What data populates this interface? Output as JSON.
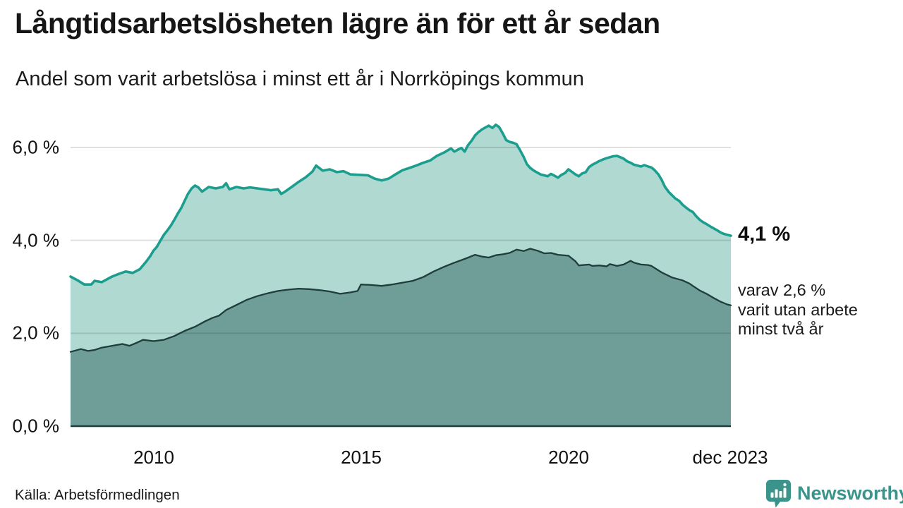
{
  "header": {
    "title": "Långtidsarbetslösheten lägre än för ett år sedan",
    "subtitle": "Andel som varit arbetslösa i minst ett år i Norrköpings kommun"
  },
  "footer": {
    "source": "Källa: Arbetsförmedlingen",
    "brand": "Newsworthy"
  },
  "chart_data": {
    "type": "area",
    "title": "Långtidsarbetslösheten lägre än för ett år sedan",
    "subtitle": "Andel som varit arbetslösa i minst ett år i Norrköpings kommun",
    "x_domain": [
      2008,
      2023.9167
    ],
    "ylim": [
      0,
      6.6
    ],
    "grid": true,
    "legend": "none",
    "yticks": [
      {
        "value": 0,
        "label": "0,0 %"
      },
      {
        "value": 2,
        "label": "2,0 %"
      },
      {
        "value": 4,
        "label": "4,0 %"
      },
      {
        "value": 6,
        "label": "6,0 %"
      }
    ],
    "xticks": [
      {
        "x": 2010,
        "label": "2010"
      },
      {
        "x": 2015,
        "label": "2015"
      },
      {
        "x": 2020,
        "label": "2020"
      },
      {
        "x": 2023.9167,
        "label": "dec 2023"
      }
    ],
    "colors": {
      "accent_teal": "#1b9e8e",
      "light_fill": "#b0d9d2",
      "dark_fill": "#6f9e99",
      "dark_line": "#1f3d3a",
      "grid": "rgba(17,17,17,0.13)",
      "baseline": "#1f3d3a",
      "brand_teal": "#3a948b"
    },
    "series": [
      {
        "name": "arbetslosa-minst-ett-ar",
        "end_value_label": "4,1 %",
        "line_color": "#1b9e8e",
        "fill_color": "#b0d9d2",
        "stroke_width": 3.6,
        "points": [
          [
            2008.0,
            3.22
          ],
          [
            2008.17,
            3.14
          ],
          [
            2008.33,
            3.05
          ],
          [
            2008.5,
            3.05
          ],
          [
            2008.58,
            3.13
          ],
          [
            2008.75,
            3.1
          ],
          [
            2009.0,
            3.22
          ],
          [
            2009.17,
            3.28
          ],
          [
            2009.33,
            3.33
          ],
          [
            2009.5,
            3.3
          ],
          [
            2009.67,
            3.38
          ],
          [
            2009.83,
            3.55
          ],
          [
            2009.92,
            3.66
          ],
          [
            2010.0,
            3.78
          ],
          [
            2010.08,
            3.86
          ],
          [
            2010.17,
            4.0
          ],
          [
            2010.25,
            4.12
          ],
          [
            2010.33,
            4.21
          ],
          [
            2010.42,
            4.32
          ],
          [
            2010.5,
            4.44
          ],
          [
            2010.58,
            4.57
          ],
          [
            2010.67,
            4.7
          ],
          [
            2010.75,
            4.85
          ],
          [
            2010.83,
            5.0
          ],
          [
            2010.92,
            5.12
          ],
          [
            2011.0,
            5.18
          ],
          [
            2011.08,
            5.14
          ],
          [
            2011.17,
            5.05
          ],
          [
            2011.25,
            5.1
          ],
          [
            2011.33,
            5.15
          ],
          [
            2011.5,
            5.12
          ],
          [
            2011.67,
            5.15
          ],
          [
            2011.75,
            5.23
          ],
          [
            2011.83,
            5.1
          ],
          [
            2012.0,
            5.15
          ],
          [
            2012.17,
            5.12
          ],
          [
            2012.33,
            5.14
          ],
          [
            2012.5,
            5.12
          ],
          [
            2012.67,
            5.1
          ],
          [
            2012.83,
            5.08
          ],
          [
            2013.0,
            5.1
          ],
          [
            2013.08,
            5.0
          ],
          [
            2013.17,
            5.05
          ],
          [
            2013.33,
            5.15
          ],
          [
            2013.5,
            5.26
          ],
          [
            2013.67,
            5.36
          ],
          [
            2013.83,
            5.48
          ],
          [
            2013.92,
            5.61
          ],
          [
            2014.08,
            5.5
          ],
          [
            2014.25,
            5.53
          ],
          [
            2014.42,
            5.47
          ],
          [
            2014.58,
            5.49
          ],
          [
            2014.75,
            5.42
          ],
          [
            2015.0,
            5.41
          ],
          [
            2015.17,
            5.4
          ],
          [
            2015.33,
            5.33
          ],
          [
            2015.5,
            5.29
          ],
          [
            2015.67,
            5.33
          ],
          [
            2015.83,
            5.42
          ],
          [
            2016.0,
            5.51
          ],
          [
            2016.17,
            5.56
          ],
          [
            2016.33,
            5.61
          ],
          [
            2016.5,
            5.67
          ],
          [
            2016.67,
            5.72
          ],
          [
            2016.83,
            5.82
          ],
          [
            2017.0,
            5.89
          ],
          [
            2017.17,
            5.98
          ],
          [
            2017.25,
            5.91
          ],
          [
            2017.33,
            5.95
          ],
          [
            2017.42,
            5.99
          ],
          [
            2017.5,
            5.91
          ],
          [
            2017.58,
            6.05
          ],
          [
            2017.67,
            6.15
          ],
          [
            2017.75,
            6.26
          ],
          [
            2017.83,
            6.33
          ],
          [
            2017.92,
            6.39
          ],
          [
            2018.0,
            6.43
          ],
          [
            2018.08,
            6.47
          ],
          [
            2018.17,
            6.42
          ],
          [
            2018.25,
            6.49
          ],
          [
            2018.33,
            6.44
          ],
          [
            2018.42,
            6.3
          ],
          [
            2018.5,
            6.16
          ],
          [
            2018.58,
            6.12
          ],
          [
            2018.67,
            6.1
          ],
          [
            2018.75,
            6.07
          ],
          [
            2018.83,
            5.95
          ],
          [
            2018.92,
            5.8
          ],
          [
            2019.0,
            5.64
          ],
          [
            2019.08,
            5.56
          ],
          [
            2019.17,
            5.5
          ],
          [
            2019.25,
            5.46
          ],
          [
            2019.33,
            5.42
          ],
          [
            2019.5,
            5.38
          ],
          [
            2019.58,
            5.43
          ],
          [
            2019.67,
            5.39
          ],
          [
            2019.75,
            5.35
          ],
          [
            2019.83,
            5.41
          ],
          [
            2019.92,
            5.45
          ],
          [
            2020.0,
            5.53
          ],
          [
            2020.08,
            5.48
          ],
          [
            2020.17,
            5.42
          ],
          [
            2020.25,
            5.38
          ],
          [
            2020.33,
            5.44
          ],
          [
            2020.42,
            5.47
          ],
          [
            2020.5,
            5.58
          ],
          [
            2020.58,
            5.63
          ],
          [
            2020.67,
            5.67
          ],
          [
            2020.75,
            5.71
          ],
          [
            2020.83,
            5.74
          ],
          [
            2020.92,
            5.77
          ],
          [
            2021.0,
            5.79
          ],
          [
            2021.08,
            5.81
          ],
          [
            2021.17,
            5.82
          ],
          [
            2021.25,
            5.79
          ],
          [
            2021.33,
            5.76
          ],
          [
            2021.42,
            5.7
          ],
          [
            2021.5,
            5.67
          ],
          [
            2021.58,
            5.63
          ],
          [
            2021.67,
            5.61
          ],
          [
            2021.75,
            5.59
          ],
          [
            2021.83,
            5.62
          ],
          [
            2021.92,
            5.59
          ],
          [
            2022.0,
            5.57
          ],
          [
            2022.08,
            5.51
          ],
          [
            2022.17,
            5.42
          ],
          [
            2022.25,
            5.3
          ],
          [
            2022.33,
            5.15
          ],
          [
            2022.42,
            5.04
          ],
          [
            2022.5,
            4.97
          ],
          [
            2022.58,
            4.9
          ],
          [
            2022.67,
            4.85
          ],
          [
            2022.75,
            4.77
          ],
          [
            2022.83,
            4.71
          ],
          [
            2022.92,
            4.65
          ],
          [
            2023.0,
            4.61
          ],
          [
            2023.08,
            4.52
          ],
          [
            2023.17,
            4.44
          ],
          [
            2023.25,
            4.39
          ],
          [
            2023.33,
            4.35
          ],
          [
            2023.42,
            4.3
          ],
          [
            2023.5,
            4.26
          ],
          [
            2023.58,
            4.22
          ],
          [
            2023.67,
            4.17
          ],
          [
            2023.75,
            4.14
          ],
          [
            2023.83,
            4.12
          ],
          [
            2023.9167,
            4.1
          ]
        ]
      },
      {
        "name": "arbetslosa-minst-tva-ar",
        "end_value_label": "2,6 %",
        "line_color": "#1f3d3a",
        "fill_color": "#6f9e99",
        "stroke_width": 2.3,
        "points": [
          [
            2008.0,
            1.6
          ],
          [
            2008.25,
            1.66
          ],
          [
            2008.42,
            1.62
          ],
          [
            2008.58,
            1.64
          ],
          [
            2008.75,
            1.69
          ],
          [
            2009.0,
            1.73
          ],
          [
            2009.25,
            1.77
          ],
          [
            2009.42,
            1.73
          ],
          [
            2009.58,
            1.79
          ],
          [
            2009.75,
            1.86
          ],
          [
            2009.92,
            1.84
          ],
          [
            2010.0,
            1.83
          ],
          [
            2010.25,
            1.86
          ],
          [
            2010.5,
            1.94
          ],
          [
            2010.75,
            2.05
          ],
          [
            2011.0,
            2.14
          ],
          [
            2011.25,
            2.26
          ],
          [
            2011.42,
            2.33
          ],
          [
            2011.58,
            2.38
          ],
          [
            2011.75,
            2.5
          ],
          [
            2012.0,
            2.61
          ],
          [
            2012.25,
            2.72
          ],
          [
            2012.5,
            2.8
          ],
          [
            2012.75,
            2.86
          ],
          [
            2013.0,
            2.91
          ],
          [
            2013.25,
            2.94
          ],
          [
            2013.5,
            2.96
          ],
          [
            2013.75,
            2.95
          ],
          [
            2014.0,
            2.93
          ],
          [
            2014.25,
            2.9
          ],
          [
            2014.5,
            2.85
          ],
          [
            2014.75,
            2.88
          ],
          [
            2014.92,
            2.91
          ],
          [
            2015.0,
            3.05
          ],
          [
            2015.25,
            3.04
          ],
          [
            2015.5,
            3.02
          ],
          [
            2015.75,
            3.05
          ],
          [
            2016.0,
            3.09
          ],
          [
            2016.25,
            3.13
          ],
          [
            2016.5,
            3.21
          ],
          [
            2016.75,
            3.33
          ],
          [
            2017.0,
            3.43
          ],
          [
            2017.25,
            3.52
          ],
          [
            2017.5,
            3.6
          ],
          [
            2017.75,
            3.69
          ],
          [
            2017.92,
            3.65
          ],
          [
            2018.08,
            3.63
          ],
          [
            2018.25,
            3.68
          ],
          [
            2018.42,
            3.7
          ],
          [
            2018.58,
            3.73
          ],
          [
            2018.75,
            3.8
          ],
          [
            2018.92,
            3.77
          ],
          [
            2019.08,
            3.82
          ],
          [
            2019.25,
            3.78
          ],
          [
            2019.42,
            3.72
          ],
          [
            2019.58,
            3.73
          ],
          [
            2019.75,
            3.69
          ],
          [
            2020.0,
            3.67
          ],
          [
            2020.17,
            3.55
          ],
          [
            2020.25,
            3.46
          ],
          [
            2020.5,
            3.48
          ],
          [
            2020.58,
            3.45
          ],
          [
            2020.75,
            3.46
          ],
          [
            2020.92,
            3.44
          ],
          [
            2021.0,
            3.49
          ],
          [
            2021.17,
            3.45
          ],
          [
            2021.33,
            3.48
          ],
          [
            2021.5,
            3.56
          ],
          [
            2021.58,
            3.52
          ],
          [
            2021.75,
            3.48
          ],
          [
            2021.92,
            3.47
          ],
          [
            2022.0,
            3.45
          ],
          [
            2022.25,
            3.31
          ],
          [
            2022.5,
            3.2
          ],
          [
            2022.75,
            3.14
          ],
          [
            2022.92,
            3.07
          ],
          [
            2023.0,
            3.02
          ],
          [
            2023.17,
            2.92
          ],
          [
            2023.33,
            2.85
          ],
          [
            2023.5,
            2.76
          ],
          [
            2023.67,
            2.68
          ],
          [
            2023.83,
            2.62
          ],
          [
            2023.9167,
            2.6
          ]
        ]
      }
    ],
    "annotations": {
      "end_value": "4,1 %",
      "note_lines": [
        "varav 2,6 %",
        "varit utan arbete",
        "minst två år"
      ]
    }
  }
}
